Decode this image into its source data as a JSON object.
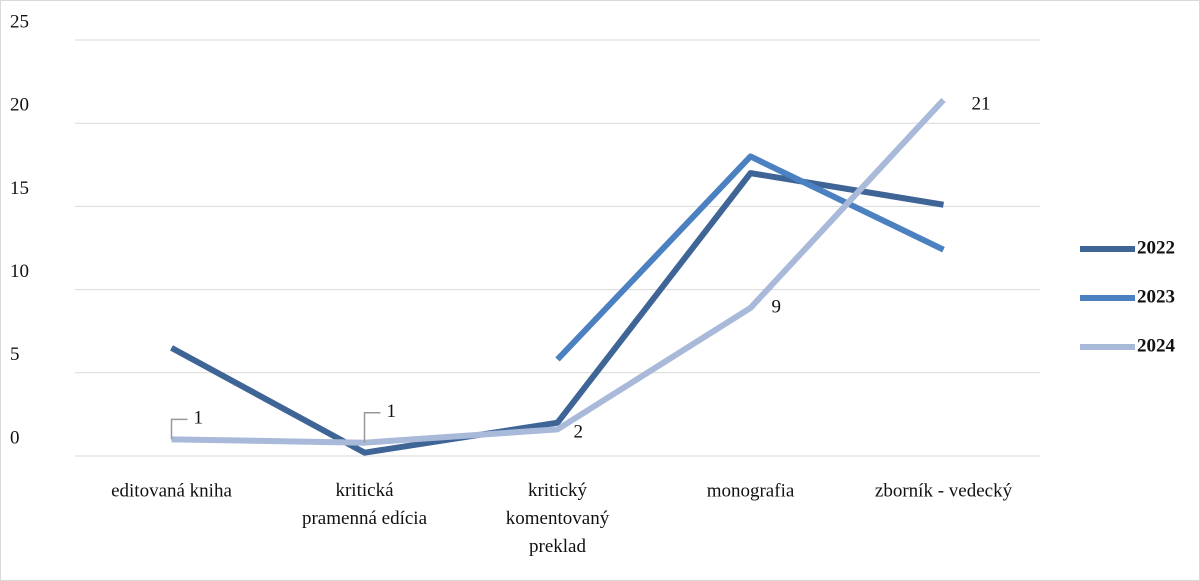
{
  "chart_data": {
    "type": "line",
    "categories": [
      "editovaná kniha",
      "kritická\npramenná edícia",
      "kritický\nkomentovaný\npreklad",
      "monografia",
      "zborník - vedecký"
    ],
    "series": [
      {
        "name": "2022",
        "color": "#3f6597",
        "values": [
          6.5,
          0.2,
          2,
          17,
          15.1
        ]
      },
      {
        "name": "2023",
        "color": "#4b80c1",
        "values": [
          null,
          null,
          5.8,
          18,
          12.4
        ]
      },
      {
        "name": "2024",
        "color": "#a9b9d9",
        "values": [
          1,
          0.8,
          1.6,
          8.9,
          21.4
        ],
        "value_labels": [
          "1",
          "1",
          "2",
          "9",
          "21"
        ]
      }
    ],
    "ylim": [
      0,
      25
    ],
    "yticks": [
      0,
      5,
      10,
      15,
      20,
      25
    ],
    "grid": true,
    "legend": "right"
  }
}
